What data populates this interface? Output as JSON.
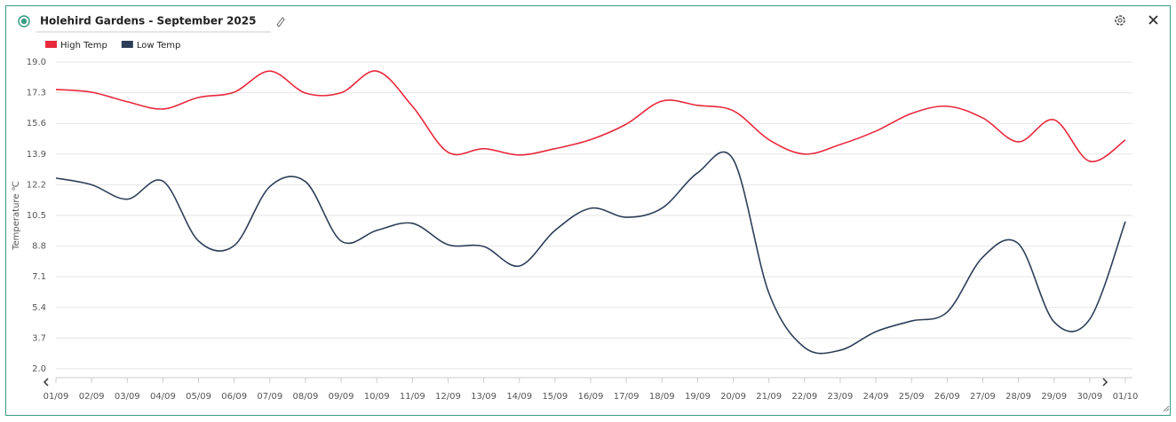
{
  "chart_data": {
    "type": "line",
    "title": "Holehird Gardens - September 2025",
    "y_label": "Temperature ℃",
    "categories": [
      "01/09",
      "02/09",
      "03/09",
      "04/09",
      "05/09",
      "06/09",
      "07/09",
      "08/09",
      "09/09",
      "10/09",
      "11/09",
      "12/09",
      "13/09",
      "14/09",
      "15/09",
      "16/09",
      "17/09",
      "18/09",
      "19/09",
      "20/09",
      "21/09",
      "22/09",
      "23/09",
      "24/09",
      "25/09",
      "26/09",
      "27/09",
      "28/09",
      "29/09",
      "30/09",
      "01/10"
    ],
    "series": [
      {
        "name": "High Temp",
        "color": "#e8283c",
        "values": [
          17.48,
          17.33,
          16.8,
          16.4,
          17.04,
          17.33,
          18.5,
          17.28,
          17.3,
          18.5,
          16.55,
          14.0,
          14.2,
          13.85,
          14.2,
          14.7,
          15.56,
          16.84,
          16.6,
          16.3,
          14.7,
          13.9,
          14.43,
          15.17,
          16.15,
          16.55,
          15.9,
          14.58,
          15.8,
          13.5,
          14.68
        ]
      },
      {
        "name": "Low Temp",
        "color": "#2e3e58",
        "values": [
          12.57,
          12.2,
          11.4,
          12.4,
          9.08,
          8.83,
          12.1,
          12.37,
          9.08,
          9.67,
          10.06,
          8.88,
          8.78,
          7.7,
          9.67,
          10.9,
          10.4,
          10.9,
          12.86,
          13.6,
          6.2,
          3.18,
          3.03,
          4.06,
          4.65,
          5.14,
          8.19,
          8.93,
          4.6,
          4.75,
          10.16
        ]
      }
    ],
    "ylim": [
      2,
      19
    ],
    "yticks": [
      {
        "value": 2,
        "label": "2.0"
      },
      3.7,
      5.4,
      7.1,
      8.8,
      10.5,
      12.2,
      13.9,
      15.6,
      17.3,
      {
        "value": 19,
        "label": "19.0"
      }
    ],
    "grid": true,
    "legend": "top-left"
  }
}
